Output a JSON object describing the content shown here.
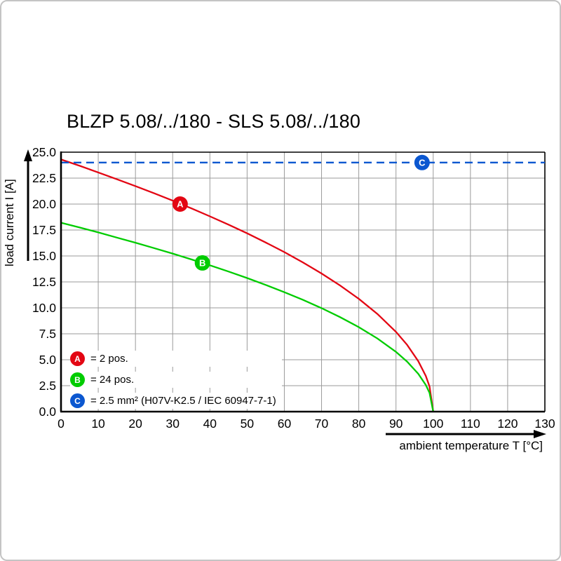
{
  "page": {
    "title": "BLZP 5.08/../180 - SLS 5.08/../180"
  },
  "axes": {
    "y_label": "load current I [A]",
    "x_label": "ambient temperature T [°C]"
  },
  "legend": [
    {
      "id": "A",
      "color": "#e30613",
      "label": "= 2 pos."
    },
    {
      "id": "B",
      "color": "#00cc00",
      "label": "= 24 pos."
    },
    {
      "id": "C",
      "color": "#0b57d0",
      "label": "= 2.5 mm² (H07V-K2.5 / IEC 60947-7-1)"
    }
  ],
  "chart_data": {
    "type": "line",
    "title": "BLZP 5.08/../180 - SLS 5.08/../180",
    "xlabel": "ambient temperature T [°C]",
    "ylabel": "load current I [A]",
    "xlim": [
      0,
      130
    ],
    "ylim": [
      0,
      25
    ],
    "x_ticks": [
      0,
      10,
      20,
      30,
      40,
      50,
      60,
      70,
      80,
      90,
      100,
      110,
      120,
      130
    ],
    "y_ticks": [
      0,
      2.5,
      5,
      7.5,
      10,
      12.5,
      15,
      17.5,
      20,
      22.5,
      25
    ],
    "grid": true,
    "legend_position": "lower-left",
    "series": [
      {
        "name": "A",
        "label": "= 2 pos.",
        "color": "#e30613",
        "style": "solid",
        "marker_at": {
          "x": 32,
          "y": 20.0
        },
        "points": [
          [
            0,
            24.3
          ],
          [
            5,
            23.69
          ],
          [
            10,
            23.05
          ],
          [
            15,
            22.39
          ],
          [
            20,
            21.73
          ],
          [
            25,
            21.04
          ],
          [
            30,
            20.33
          ],
          [
            35,
            19.59
          ],
          [
            40,
            18.82
          ],
          [
            45,
            18.02
          ],
          [
            50,
            17.18
          ],
          [
            55,
            16.3
          ],
          [
            60,
            15.37
          ],
          [
            65,
            14.38
          ],
          [
            70,
            13.31
          ],
          [
            75,
            12.15
          ],
          [
            80,
            10.87
          ],
          [
            85,
            9.41
          ],
          [
            90,
            7.68
          ],
          [
            93,
            6.43
          ],
          [
            96,
            4.86
          ],
          [
            98,
            3.44
          ],
          [
            99,
            2.43
          ],
          [
            100,
            0
          ]
        ]
      },
      {
        "name": "B",
        "label": "= 24 pos.",
        "color": "#00cc00",
        "style": "solid",
        "marker_at": {
          "x": 38,
          "y": 14.33
        },
        "points": [
          [
            0,
            18.2
          ],
          [
            5,
            17.74
          ],
          [
            10,
            17.27
          ],
          [
            15,
            16.77
          ],
          [
            20,
            16.28
          ],
          [
            25,
            15.76
          ],
          [
            30,
            15.23
          ],
          [
            35,
            14.67
          ],
          [
            40,
            14.1
          ],
          [
            45,
            13.5
          ],
          [
            50,
            12.87
          ],
          [
            55,
            12.21
          ],
          [
            60,
            11.51
          ],
          [
            65,
            10.77
          ],
          [
            70,
            9.97
          ],
          [
            75,
            9.1
          ],
          [
            80,
            8.14
          ],
          [
            85,
            7.05
          ],
          [
            90,
            5.76
          ],
          [
            93,
            4.82
          ],
          [
            96,
            3.64
          ],
          [
            98,
            2.57
          ],
          [
            99,
            1.82
          ],
          [
            100,
            0
          ]
        ]
      },
      {
        "name": "C",
        "label": "= 2.5 mm² (H07V-K2.5 / IEC 60947-7-1)",
        "color": "#0b57d0",
        "style": "dashed",
        "marker_at": {
          "x": 97,
          "y": 24
        },
        "points": [
          [
            0,
            24
          ],
          [
            130,
            24
          ]
        ]
      }
    ]
  }
}
